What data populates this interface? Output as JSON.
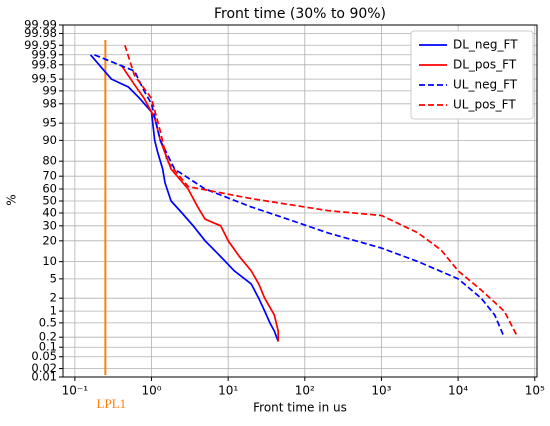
{
  "chart_data": {
    "type": "line",
    "title": "Front time (30% to 90%)",
    "x_label": "Front time in us",
    "y_label": "%",
    "xscale": "log",
    "yscale": "probit",
    "grid": true,
    "legend": "upper right",
    "xlim": [
      0.07,
      107000
    ],
    "ylim": [
      0.01,
      99.99
    ],
    "xticks": [
      {
        "value": 0.1,
        "label": "10⁻¹"
      },
      {
        "value": 1,
        "label": "10⁰"
      },
      {
        "value": 10,
        "label": "10¹"
      },
      {
        "value": 100,
        "label": "10²"
      },
      {
        "value": 1000,
        "label": "10³"
      },
      {
        "value": 10000,
        "label": "10⁴"
      },
      {
        "value": 100000,
        "label": "10⁵"
      }
    ],
    "yticks": [
      0.01,
      0.02,
      0.05,
      0.1,
      0.2,
      0.5,
      1,
      2,
      5,
      10,
      20,
      30,
      40,
      50,
      60,
      70,
      80,
      90,
      95,
      98,
      99,
      99.5,
      99.8,
      99.9,
      99.95,
      99.98,
      99.99
    ],
    "vline": {
      "x": 0.25,
      "label": "LPL1",
      "color": "#ff7f0e"
    },
    "series": [
      {
        "name": "DL_neg_FT",
        "color": "#0000ff",
        "dash": false,
        "x": [
          0.16,
          0.3,
          0.5,
          0.7,
          1.0,
          1.1,
          1.2,
          1.4,
          1.5,
          1.8,
          2.5,
          3.5,
          5,
          8,
          12,
          20,
          25,
          30,
          35,
          40,
          45
        ],
        "values": [
          99.9,
          99.5,
          99.2,
          98.5,
          97,
          90,
          85,
          75,
          65,
          50,
          40,
          30,
          20,
          12,
          7,
          4,
          2,
          1,
          0.5,
          0.3,
          0.15
        ]
      },
      {
        "name": "DL_pos_FT",
        "color": "#ff0000",
        "dash": false,
        "x": [
          0.4,
          0.6,
          0.8,
          1.1,
          1.3,
          1.8,
          3,
          4,
          5,
          8,
          10,
          14,
          20,
          25,
          30,
          40,
          45,
          45
        ],
        "values": [
          99.8,
          99.3,
          98.5,
          96,
          90,
          75,
          60,
          45,
          35,
          30,
          20,
          12,
          7,
          4,
          2,
          0.8,
          0.3,
          0.15
        ]
      },
      {
        "name": "UL_neg_FT",
        "color": "#0000ff",
        "dash": true,
        "x": [
          0.18,
          0.6,
          0.8,
          1.0,
          1.3,
          2,
          5,
          20,
          60,
          200,
          1000,
          3000,
          10000,
          20000,
          30000,
          40000
        ],
        "values": [
          99.9,
          99.7,
          99,
          98,
          90,
          75,
          60,
          45,
          35,
          25,
          16,
          10,
          5,
          2,
          0.8,
          0.2
        ]
      },
      {
        "name": "UL_pos_FT",
        "color": "#ff0000",
        "dash": true,
        "x": [
          0.45,
          0.6,
          1.0,
          1.3,
          1.6,
          3,
          20,
          200,
          1000,
          3000,
          6000,
          10000,
          20000,
          40000,
          60000
        ],
        "values": [
          99.95,
          99.6,
          98.5,
          93,
          80,
          62,
          52,
          42,
          38,
          25,
          15,
          7,
          3,
          1,
          0.2
        ]
      }
    ]
  }
}
